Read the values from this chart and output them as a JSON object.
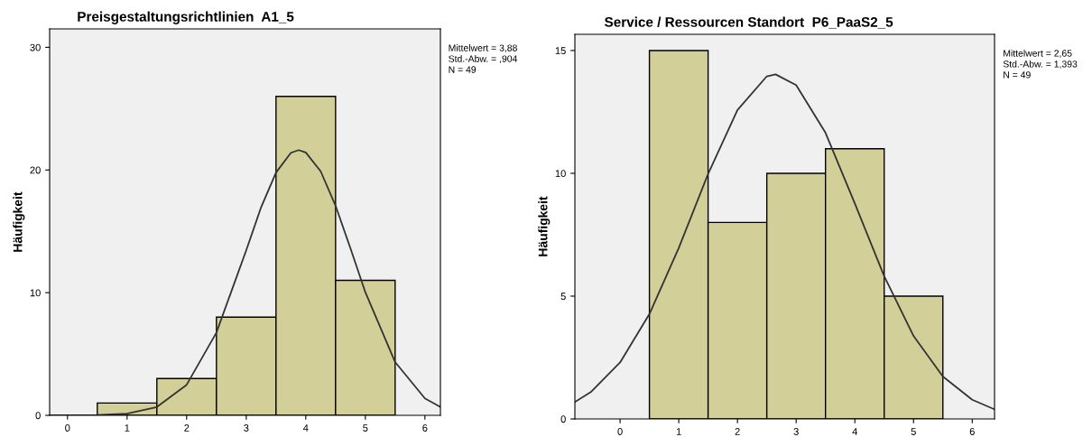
{
  "chart_data": [
    {
      "type": "histogram",
      "title": "Preisgestaltungsrichtlinien  A1_5",
      "ylabel": "Häufigkeit",
      "xlim": [
        -0.3,
        6.26
      ],
      "ylim": [
        0,
        31.5
      ],
      "xticks": [
        0,
        1,
        2,
        3,
        4,
        5,
        6
      ],
      "yticks": [
        0,
        10,
        20,
        30
      ],
      "grid": false,
      "annotations": [
        "Mittelwert = 3,88",
        "Std.-Abw. = ,904",
        "N = 49"
      ],
      "series": [
        {
          "type": "histogram",
          "color": "#d3cf98",
          "bins": [
            0.5,
            1.5,
            2.5,
            3.5,
            4.5,
            5.5
          ],
          "values": [
            1,
            3,
            8,
            26,
            11
          ]
        },
        {
          "type": "line",
          "color": "#333333",
          "x": [
            -0.3,
            0,
            0.5,
            1,
            1.5,
            2,
            2.5,
            3,
            3.25,
            3.5,
            3.75,
            3.88,
            4,
            4.25,
            4.5,
            4.75,
            5,
            5.5,
            6,
            6.26
          ],
          "values": [
            0,
            0,
            0.02,
            0.14,
            0.68,
            2.49,
            6.74,
            13.45,
            16.96,
            19.79,
            21.4,
            21.62,
            21.43,
            19.89,
            17.09,
            13.61,
            10.03,
            4.34,
            1.38,
            0.68
          ]
        }
      ]
    },
    {
      "type": "histogram",
      "title": "Service / Ressourcen Standort  P6_PaaS2_5",
      "ylabel": "Häufigkeit",
      "xlim": [
        -0.77,
        6.38
      ],
      "ylim": [
        0,
        15.66
      ],
      "xticks": [
        0,
        1,
        2,
        3,
        4,
        5,
        6
      ],
      "yticks": [
        0,
        5,
        10,
        15
      ],
      "grid": false,
      "annotations": [
        "Mittelwert = 2,65",
        "Std.-Abw. = 1,393",
        "N = 49"
      ],
      "series": [
        {
          "type": "histogram",
          "color": "#d3cf98",
          "bins": [
            0.5,
            1.5,
            2.5,
            3.5,
            4.5,
            5.5
          ],
          "values": [
            15,
            8,
            10,
            11,
            5
          ]
        },
        {
          "type": "line",
          "color": "#333333",
          "x": [
            -0.77,
            -0.5,
            0,
            0.5,
            1,
            1.5,
            2,
            2.5,
            2.65,
            3,
            3.5,
            4,
            4.5,
            5,
            5.5,
            6,
            6.38
          ],
          "values": [
            0.69,
            1.09,
            2.3,
            4.27,
            6.96,
            9.98,
            12.58,
            13.95,
            14.03,
            13.59,
            11.65,
            8.77,
            5.81,
            3.38,
            1.73,
            0.78,
            0.39
          ]
        }
      ]
    }
  ]
}
